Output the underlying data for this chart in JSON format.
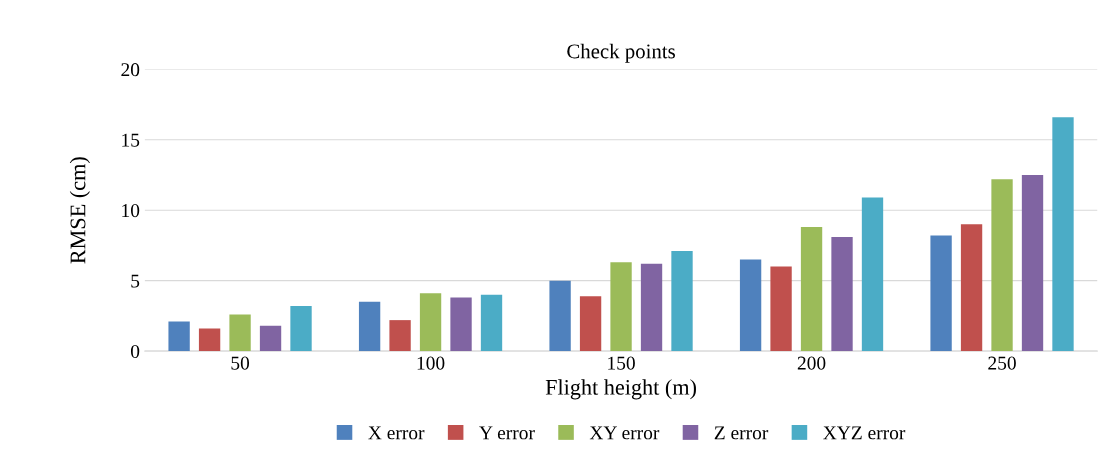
{
  "chart_data": {
    "type": "bar",
    "title": "Check points",
    "xlabel": "Flight height (m)",
    "ylabel": "RMSE (cm)",
    "categories": [
      "50",
      "100",
      "150",
      "200",
      "250"
    ],
    "series": [
      {
        "name": "X error",
        "color": "#4f81bd",
        "values": [
          2.1,
          3.5,
          5.0,
          6.5,
          8.2
        ]
      },
      {
        "name": "Y error",
        "color": "#c0504d",
        "values": [
          1.6,
          2.2,
          3.9,
          6.0,
          9.0
        ]
      },
      {
        "name": "XY error",
        "color": "#9bbb59",
        "values": [
          2.6,
          4.1,
          6.3,
          8.8,
          12.2
        ]
      },
      {
        "name": "Z error",
        "color": "#8064a2",
        "values": [
          1.8,
          3.8,
          6.2,
          8.1,
          12.5
        ]
      },
      {
        "name": "XYZ error",
        "color": "#4bacc6",
        "values": [
          3.2,
          4.0,
          7.1,
          10.9,
          16.6
        ]
      }
    ],
    "ylim": [
      0,
      20
    ],
    "yticks": [
      0,
      5,
      10,
      15,
      20
    ],
    "grid": "y",
    "legend": "bottom"
  }
}
